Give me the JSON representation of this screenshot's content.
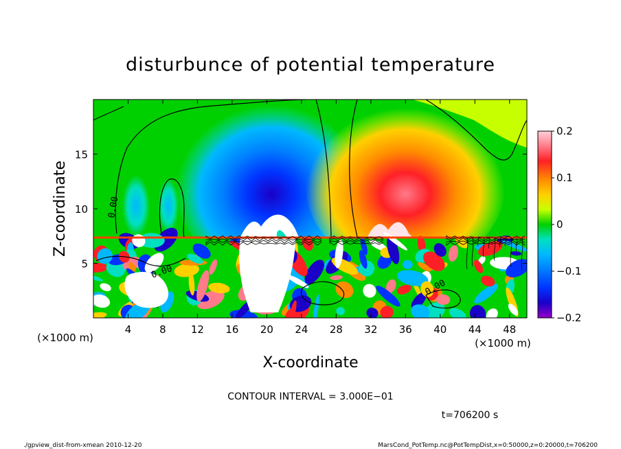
{
  "chart_data": {
    "type": "heatmap",
    "title": "disturbunce of potential temperature",
    "xlabel": "X-coordinate",
    "ylabel": "Z-coordinate",
    "x_unit": "(×1000 m)",
    "y_unit": "(×1000 m)",
    "xlim": [
      0,
      50
    ],
    "ylim": [
      0,
      20
    ],
    "x_ticks": [
      4,
      8,
      12,
      16,
      20,
      24,
      28,
      32,
      36,
      40,
      44,
      48
    ],
    "y_ticks": [
      5,
      10,
      15
    ],
    "colorbar": {
      "min": -0.2,
      "max": 0.2,
      "ticks": [
        0.2,
        0.1,
        0,
        -0.1,
        -0.2
      ],
      "tick_labels": [
        "0.2",
        "0.1",
        "0",
        "−0.1",
        "−0.2"
      ]
    },
    "contour_interval": "CONTOUR INTERVAL = 3.000E−01",
    "contour_label": "0.00",
    "time": "t=706200 s",
    "features": [
      {
        "name": "negative-plume",
        "x": 20,
        "z": 12,
        "value": -0.18
      },
      {
        "name": "positive-plume",
        "x": 35,
        "z": 12,
        "value": 0.18
      },
      {
        "name": "left-cool-cell",
        "x": 5,
        "z": 10,
        "value": -0.08
      },
      {
        "name": "right-cool-cell",
        "x": 8,
        "z": 11,
        "value": -0.06
      },
      {
        "name": "lower-mixed-layer",
        "z_top": 7.5
      }
    ]
  },
  "footer": {
    "left": "./gpview_dist-from-xmean  2010-12-20",
    "right": "MarsCond_PotTemp.nc@PotTempDist,x=0:50000,z=0:20000,t=706200"
  },
  "colors": {
    "background": "#ffffff",
    "frame": "#000000"
  }
}
